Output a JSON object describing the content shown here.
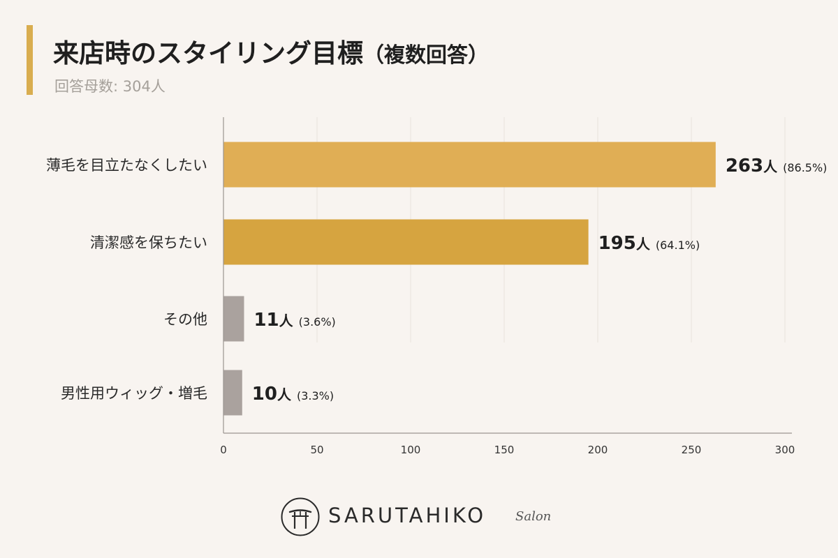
{
  "header": {
    "title": "来店時のスタイリング目標",
    "title_note": "（複数回答）",
    "subtitle": "回答母数: 304人"
  },
  "colors": {
    "accent": "#d9ad4f",
    "bar_gold_1": "#e0ae55",
    "bar_gold_2": "#d6a440",
    "bar_gray": "#aaa29e",
    "background": "#f8f4f0"
  },
  "chart_data": {
    "type": "bar",
    "orientation": "horizontal",
    "title": "来店時のスタイリング目標（複数回答）",
    "subtitle": "回答母数: 304人",
    "categories": [
      "薄毛を目立たなくしたい",
      "清潔感を保ちたい",
      "その他",
      "男性用ウィッグ・増毛"
    ],
    "values": [
      263,
      195,
      11,
      10
    ],
    "unit": "人",
    "percent_labels": [
      "(86.5%)",
      "(64.1%)",
      "(3.6%)",
      "(3.3%)"
    ],
    "bar_colors": [
      "#e0ae55",
      "#d6a440",
      "#aaa29e",
      "#aaa29e"
    ],
    "xlim": [
      0,
      300
    ],
    "xticks": [
      0,
      50,
      100,
      150,
      200,
      250,
      300
    ],
    "grid": true,
    "legend": "none"
  },
  "logo": {
    "brand": "SARUTAHIKO",
    "sub": "Salon"
  }
}
